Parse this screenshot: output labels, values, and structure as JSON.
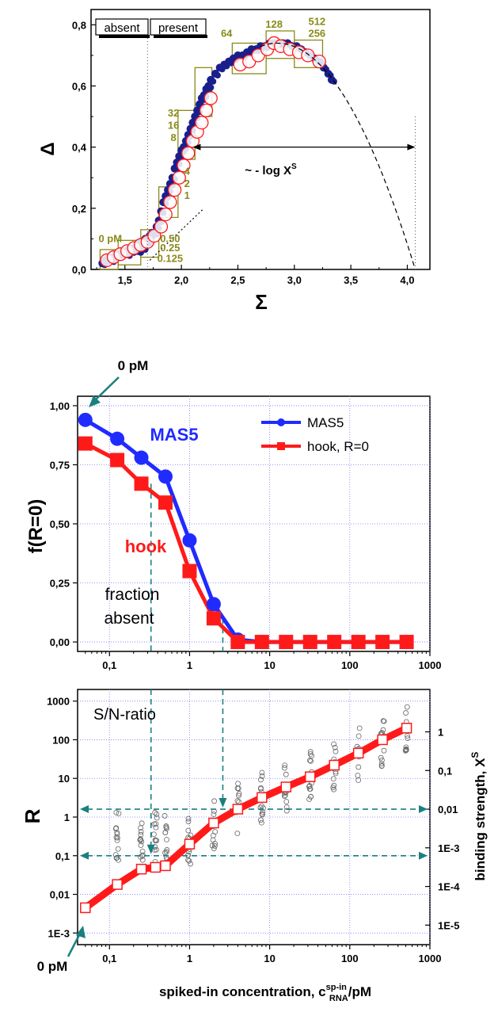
{
  "chart_data": [
    {
      "type": "scatter",
      "xlabel": "Σ",
      "ylabel": "Δ",
      "xlim": [
        1.2,
        4.2
      ],
      "ylim": [
        0.0,
        0.85
      ],
      "x_ticks": [
        "1,5",
        "2,0",
        "2,5",
        "3,0",
        "3,5",
        "4,0"
      ],
      "y_ticks": [
        "0,0",
        "0,2",
        "0,4",
        "0,6",
        "0,8"
      ],
      "regions": [
        "absent",
        "present"
      ],
      "boundary_x": 1.7,
      "intercept_x": 4.07,
      "annotation": "~ - log X",
      "annotation_sup": "S",
      "arrow_y": 0.4,
      "arrow_x": [
        2.1,
        4.07
      ],
      "conc_labels": [
        {
          "text": "0 pM",
          "x": 1.37,
          "y": 0.09
        },
        {
          "text": "0.50",
          "x": 1.9,
          "y": 0.09
        },
        {
          "text": "0.25",
          "x": 1.9,
          "y": 0.06
        },
        {
          "text": "0.125",
          "x": 1.9,
          "y": 0.025
        },
        {
          "text": "4",
          "x": 2.05,
          "y": 0.31
        },
        {
          "text": "2",
          "x": 2.05,
          "y": 0.27
        },
        {
          "text": "1",
          "x": 2.05,
          "y": 0.23
        },
        {
          "text": "32",
          "x": 1.93,
          "y": 0.5
        },
        {
          "text": "16",
          "x": 1.93,
          "y": 0.46
        },
        {
          "text": "8",
          "x": 1.93,
          "y": 0.42
        },
        {
          "text": "64",
          "x": 2.4,
          "y": 0.76
        },
        {
          "text": "128",
          "x": 2.82,
          "y": 0.79
        },
        {
          "text": "512",
          "x": 3.2,
          "y": 0.8
        },
        {
          "text": "256",
          "x": 3.2,
          "y": 0.76
        }
      ],
      "boxes": [
        {
          "x": [
            1.28,
            1.44
          ],
          "y": [
            0.0,
            0.065
          ]
        },
        {
          "x": [
            1.44,
            1.64
          ],
          "y": [
            0.015,
            0.095
          ]
        },
        {
          "x": [
            1.64,
            1.8
          ],
          "y": [
            0.04,
            0.13
          ]
        },
        {
          "x": [
            1.8,
            1.97
          ],
          "y": [
            0.17,
            0.27
          ]
        },
        {
          "x": [
            1.97,
            2.12
          ],
          "y": [
            0.36,
            0.52
          ]
        },
        {
          "x": [
            2.12,
            2.27
          ],
          "y": [
            0.5,
            0.66
          ]
        },
        {
          "x": [
            2.45,
            2.75
          ],
          "y": [
            0.64,
            0.74
          ]
        },
        {
          "x": [
            2.75,
            3.0
          ],
          "y": [
            0.69,
            0.78
          ]
        },
        {
          "x": [
            3.0,
            3.25
          ],
          "y": [
            0.66,
            0.75
          ]
        }
      ],
      "series": [
        {
          "name": "probes",
          "style": "dark-blue dots",
          "x": [
            1.3,
            1.32,
            1.34,
            1.36,
            1.38,
            1.4,
            1.42,
            1.44,
            1.46,
            1.48,
            1.5,
            1.52,
            1.54,
            1.56,
            1.58,
            1.6,
            1.62,
            1.64,
            1.66,
            1.68,
            1.7,
            1.72,
            1.74,
            1.76,
            1.78,
            1.8,
            1.82,
            1.84,
            1.86,
            1.88,
            1.9,
            1.92,
            1.94,
            1.96,
            1.98,
            2.0,
            2.02,
            2.04,
            2.06,
            2.08,
            2.1,
            2.12,
            2.14,
            2.16,
            2.18,
            2.2,
            2.22,
            2.24,
            2.26,
            2.3,
            2.34,
            2.38,
            2.42,
            2.46,
            2.5,
            2.54,
            2.58,
            2.62,
            2.66,
            2.7,
            2.74,
            2.78,
            2.82,
            2.86,
            2.9,
            2.94,
            2.98,
            3.02,
            3.06,
            3.1,
            3.14,
            3.18,
            3.22,
            3.26,
            3.3,
            3.33
          ],
          "y": [
            0.02,
            0.03,
            0.03,
            0.04,
            0.03,
            0.04,
            0.05,
            0.05,
            0.05,
            0.06,
            0.06,
            0.05,
            0.07,
            0.06,
            0.07,
            0.08,
            0.06,
            0.09,
            0.07,
            0.1,
            0.09,
            0.11,
            0.12,
            0.12,
            0.14,
            0.16,
            0.19,
            0.22,
            0.24,
            0.26,
            0.28,
            0.3,
            0.33,
            0.35,
            0.37,
            0.39,
            0.4,
            0.42,
            0.44,
            0.46,
            0.48,
            0.5,
            0.52,
            0.54,
            0.56,
            0.57,
            0.59,
            0.6,
            0.62,
            0.64,
            0.66,
            0.67,
            0.68,
            0.69,
            0.7,
            0.7,
            0.71,
            0.72,
            0.72,
            0.73,
            0.73,
            0.74,
            0.74,
            0.74,
            0.74,
            0.74,
            0.73,
            0.73,
            0.72,
            0.71,
            0.7,
            0.69,
            0.68,
            0.66,
            0.64,
            0.62
          ]
        },
        {
          "name": "averages",
          "style": "red open circles",
          "x": [
            1.34,
            1.4,
            1.46,
            1.52,
            1.58,
            1.64,
            1.7,
            1.76,
            1.82,
            1.86,
            1.9,
            1.94,
            1.98,
            2.02,
            2.06,
            2.1,
            2.14,
            2.18,
            2.22,
            2.26,
            2.52,
            2.6,
            2.68,
            2.76,
            2.82,
            2.88,
            2.96,
            3.04,
            3.12,
            3.22
          ],
          "y": [
            0.03,
            0.04,
            0.05,
            0.06,
            0.07,
            0.08,
            0.09,
            0.11,
            0.14,
            0.18,
            0.22,
            0.26,
            0.3,
            0.34,
            0.38,
            0.42,
            0.45,
            0.48,
            0.52,
            0.56,
            0.67,
            0.68,
            0.7,
            0.72,
            0.74,
            0.73,
            0.72,
            0.71,
            0.7,
            0.68
          ]
        }
      ]
    },
    {
      "type": "line",
      "ylabel": "f(R=0)",
      "xscale": "log",
      "xlim": [
        0.04,
        1000
      ],
      "ylim": [
        -0.04,
        1.04
      ],
      "x_ticks": [
        "0,1",
        "1",
        "10",
        "100",
        "1000"
      ],
      "y_ticks": [
        "0,00",
        "0,25",
        "0,50",
        "0,75",
        "1,00"
      ],
      "annotations": [
        "0 pM",
        "MAS5",
        "hook",
        "fraction",
        "absent"
      ],
      "series": [
        {
          "name": "MAS5",
          "color": "#1f2bff",
          "x": [
            0.05,
            0.125,
            0.25,
            0.5,
            1,
            2,
            4,
            8,
            16,
            32,
            64,
            128,
            256,
            512
          ],
          "y": [
            0.94,
            0.86,
            0.78,
            0.7,
            0.43,
            0.16,
            0.01,
            0,
            0,
            0,
            0,
            0,
            0,
            0
          ]
        },
        {
          "name": "hook, R=0",
          "color": "#ff1a1a",
          "x": [
            0.05,
            0.125,
            0.25,
            0.5,
            1,
            2,
            4,
            8,
            16,
            32,
            64,
            128,
            256,
            512
          ],
          "y": [
            0.84,
            0.77,
            0.67,
            0.59,
            0.3,
            0.1,
            0.0,
            0,
            0,
            0,
            0,
            0,
            0,
            0
          ]
        }
      ]
    },
    {
      "type": "scatter",
      "xlabel": "spiked-in concentration, c",
      "xlabel_sup": "sp-in",
      "xlabel_sub": "RNA",
      "xlabel_unit": "/pM",
      "ylabel": "R",
      "y2label": "binding strength, X",
      "y2label_sup": "S",
      "xscale": "log",
      "yscale": "log",
      "xlim": [
        0.04,
        1000
      ],
      "ylim": [
        0.0005,
        2000
      ],
      "x_ticks": [
        "0,1",
        "1",
        "10",
        "100",
        "1000"
      ],
      "y_ticks": [
        "1E-3",
        "0,01",
        "0,1",
        "1",
        "10",
        "100",
        "1000"
      ],
      "y2_ticks": [
        "1E-5",
        "1E-4",
        "1E-3",
        "0,01",
        "0,1",
        "1"
      ],
      "annotations": [
        "S/N-ratio",
        "0 pM"
      ],
      "hlines": [
        1.6,
        0.1
      ],
      "vlines": [
        0.33,
        2.6
      ],
      "series": [
        {
          "name": "hook",
          "color": "#ff1a1a",
          "x": [
            0.05,
            0.125,
            0.25,
            0.375,
            0.5,
            1,
            2,
            4,
            8,
            16,
            32,
            64,
            128,
            256,
            512
          ],
          "y": [
            0.0045,
            0.018,
            0.045,
            0.05,
            0.055,
            0.2,
            0.7,
            1.6,
            3.2,
            6,
            11,
            22,
            45,
            100,
            200
          ]
        }
      ]
    }
  ]
}
